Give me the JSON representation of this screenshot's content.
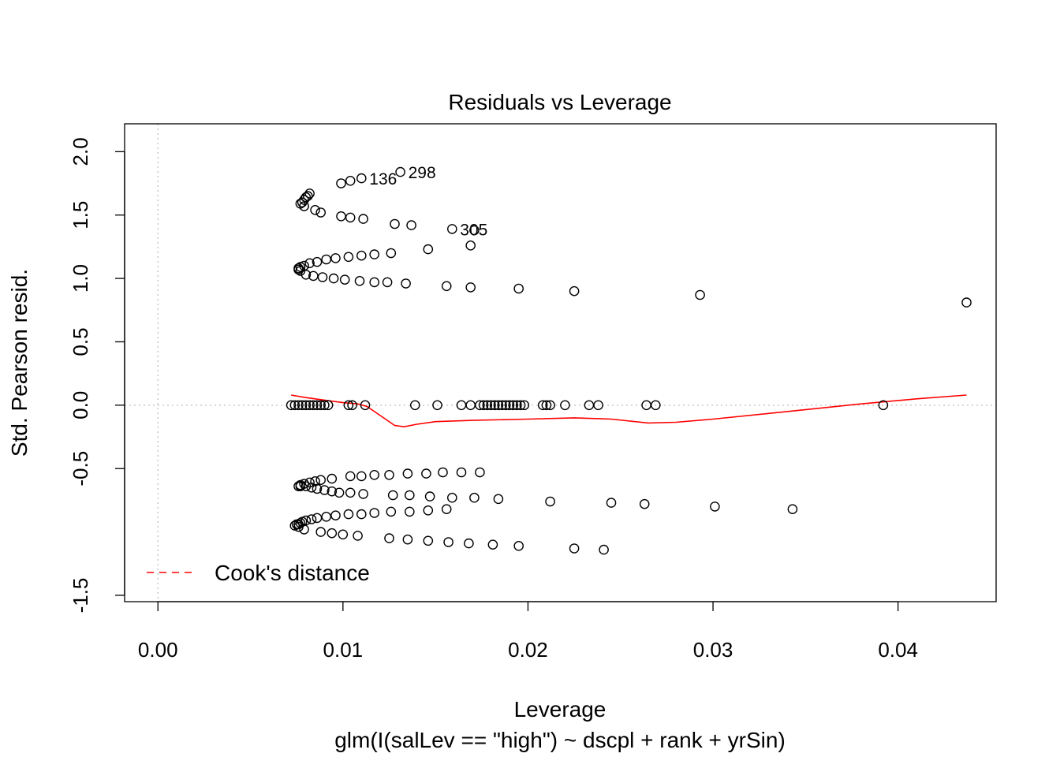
{
  "chart_data": {
    "type": "scatter",
    "title": "Residuals vs Leverage",
    "xlabel": "Leverage",
    "ylabel": "Std. Pearson resid.",
    "subtitle": "glm(I(salLev == \"high\") ~ dscpl + rank + yrSin)",
    "xlim": [
      -0.0018,
      0.0453
    ],
    "ylim": [
      -1.55,
      2.22
    ],
    "x_ticks": [
      {
        "value": 0.0,
        "label": "0.00"
      },
      {
        "value": 0.01,
        "label": "0.01"
      },
      {
        "value": 0.02,
        "label": "0.02"
      },
      {
        "value": 0.03,
        "label": "0.03"
      },
      {
        "value": 0.04,
        "label": "0.04"
      }
    ],
    "y_ticks": [
      {
        "value": 2.0,
        "label": "2.0"
      },
      {
        "value": 1.5,
        "label": "1.5"
      },
      {
        "value": 1.0,
        "label": "1.0"
      },
      {
        "value": 0.5,
        "label": "0.5"
      },
      {
        "value": 0.0,
        "label": "0.0"
      },
      {
        "value": -0.5,
        "label": "-0.5"
      },
      {
        "value": -1.5,
        "label": "-1.5"
      }
    ],
    "reference_lines": {
      "x": 0,
      "y": 0,
      "style": "dotted",
      "color": "#bebebe"
    },
    "point_color": "#000000",
    "points": [
      [
        0.0099,
        1.75
      ],
      [
        0.0104,
        1.77
      ],
      [
        0.011,
        1.79
      ],
      [
        0.0131,
        1.84
      ],
      [
        0.0078,
        1.6
      ],
      [
        0.0079,
        1.62
      ],
      [
        0.008,
        1.64
      ],
      [
        0.0081,
        1.65
      ],
      [
        0.0082,
        1.67
      ],
      [
        0.0077,
        1.59
      ],
      [
        0.0079,
        1.57
      ],
      [
        0.0085,
        1.54
      ],
      [
        0.0088,
        1.52
      ],
      [
        0.0099,
        1.49
      ],
      [
        0.0104,
        1.48
      ],
      [
        0.0111,
        1.47
      ],
      [
        0.0128,
        1.43
      ],
      [
        0.0137,
        1.42
      ],
      [
        0.0159,
        1.39
      ],
      [
        0.0171,
        1.38
      ],
      [
        0.0146,
        1.23
      ],
      [
        0.0169,
        1.26
      ],
      [
        0.0126,
        1.2
      ],
      [
        0.0117,
        1.19
      ],
      [
        0.011,
        1.18
      ],
      [
        0.0103,
        1.17
      ],
      [
        0.0096,
        1.16
      ],
      [
        0.0091,
        1.15
      ],
      [
        0.0086,
        1.13
      ],
      [
        0.0082,
        1.12
      ],
      [
        0.0079,
        1.1
      ],
      [
        0.0077,
        1.09
      ],
      [
        0.0076,
        1.08
      ],
      [
        0.0076,
        1.07
      ],
      [
        0.0077,
        1.06
      ],
      [
        0.008,
        1.03
      ],
      [
        0.0084,
        1.02
      ],
      [
        0.0089,
        1.01
      ],
      [
        0.0095,
        1.0
      ],
      [
        0.0101,
        0.99
      ],
      [
        0.0109,
        0.98
      ],
      [
        0.0117,
        0.97
      ],
      [
        0.0124,
        0.97
      ],
      [
        0.0134,
        0.96
      ],
      [
        0.0156,
        0.94
      ],
      [
        0.0169,
        0.93
      ],
      [
        0.0195,
        0.92
      ],
      [
        0.0225,
        0.9
      ],
      [
        0.0293,
        0.87
      ],
      [
        0.0437,
        0.81
      ],
      [
        0.0072,
        0.0
      ],
      [
        0.0074,
        0.0
      ],
      [
        0.0076,
        0.0
      ],
      [
        0.0078,
        0.0
      ],
      [
        0.008,
        0.0
      ],
      [
        0.0082,
        0.0
      ],
      [
        0.0084,
        0.0
      ],
      [
        0.0086,
        0.0
      ],
      [
        0.0088,
        0.0
      ],
      [
        0.009,
        0.0
      ],
      [
        0.0092,
        0.0
      ],
      [
        0.0103,
        0.0
      ],
      [
        0.0105,
        0.0
      ],
      [
        0.0112,
        0.0
      ],
      [
        0.0139,
        0.0
      ],
      [
        0.0151,
        0.0
      ],
      [
        0.0164,
        0.0
      ],
      [
        0.0169,
        0.0
      ],
      [
        0.0174,
        0.0
      ],
      [
        0.0176,
        0.0
      ],
      [
        0.0178,
        0.0
      ],
      [
        0.018,
        0.0
      ],
      [
        0.0182,
        0.0
      ],
      [
        0.0184,
        0.0
      ],
      [
        0.0186,
        0.0
      ],
      [
        0.0188,
        0.0
      ],
      [
        0.019,
        0.0
      ],
      [
        0.0192,
        0.0
      ],
      [
        0.0194,
        0.0
      ],
      [
        0.0196,
        0.0
      ],
      [
        0.0198,
        0.0
      ],
      [
        0.0208,
        0.0
      ],
      [
        0.021,
        0.0
      ],
      [
        0.0212,
        0.0
      ],
      [
        0.022,
        0.0
      ],
      [
        0.0233,
        0.0
      ],
      [
        0.0238,
        0.0
      ],
      [
        0.0264,
        0.0
      ],
      [
        0.0269,
        0.0
      ],
      [
        0.0392,
        0.0
      ],
      [
        0.0174,
        -0.53
      ],
      [
        0.0164,
        -0.53
      ],
      [
        0.0154,
        -0.53
      ],
      [
        0.0145,
        -0.54
      ],
      [
        0.0135,
        -0.54
      ],
      [
        0.0125,
        -0.55
      ],
      [
        0.0117,
        -0.55
      ],
      [
        0.011,
        -0.56
      ],
      [
        0.0104,
        -0.56
      ],
      [
        0.0094,
        -0.58
      ],
      [
        0.0088,
        -0.59
      ],
      [
        0.0085,
        -0.6
      ],
      [
        0.0082,
        -0.61
      ],
      [
        0.0079,
        -0.62
      ],
      [
        0.0077,
        -0.63
      ],
      [
        0.0076,
        -0.64
      ],
      [
        0.0077,
        -0.64
      ],
      [
        0.008,
        -0.64
      ],
      [
        0.0083,
        -0.65
      ],
      [
        0.0086,
        -0.66
      ],
      [
        0.009,
        -0.67
      ],
      [
        0.0094,
        -0.68
      ],
      [
        0.0098,
        -0.69
      ],
      [
        0.0104,
        -0.69
      ],
      [
        0.0111,
        -0.7
      ],
      [
        0.0127,
        -0.71
      ],
      [
        0.0136,
        -0.71
      ],
      [
        0.0147,
        -0.72
      ],
      [
        0.0159,
        -0.73
      ],
      [
        0.0171,
        -0.73
      ],
      [
        0.0184,
        -0.74
      ],
      [
        0.0212,
        -0.76
      ],
      [
        0.0245,
        -0.77
      ],
      [
        0.0263,
        -0.78
      ],
      [
        0.0301,
        -0.8
      ],
      [
        0.0343,
        -0.82
      ],
      [
        0.0156,
        -0.82
      ],
      [
        0.0146,
        -0.83
      ],
      [
        0.0136,
        -0.84
      ],
      [
        0.0126,
        -0.84
      ],
      [
        0.0117,
        -0.85
      ],
      [
        0.011,
        -0.86
      ],
      [
        0.0103,
        -0.86
      ],
      [
        0.0096,
        -0.87
      ],
      [
        0.0091,
        -0.88
      ],
      [
        0.0086,
        -0.89
      ],
      [
        0.0083,
        -0.9
      ],
      [
        0.008,
        -0.91
      ],
      [
        0.0078,
        -0.92
      ],
      [
        0.0077,
        -0.93
      ],
      [
        0.0076,
        -0.94
      ],
      [
        0.0075,
        -0.94
      ],
      [
        0.0074,
        -0.95
      ],
      [
        0.0076,
        -0.96
      ],
      [
        0.0079,
        -0.98
      ],
      [
        0.0088,
        -1.0
      ],
      [
        0.0094,
        -1.01
      ],
      [
        0.01,
        -1.02
      ],
      [
        0.0108,
        -1.03
      ],
      [
        0.0125,
        -1.05
      ],
      [
        0.0135,
        -1.06
      ],
      [
        0.0146,
        -1.07
      ],
      [
        0.0157,
        -1.08
      ],
      [
        0.0168,
        -1.09
      ],
      [
        0.0181,
        -1.1
      ],
      [
        0.0195,
        -1.11
      ],
      [
        0.0225,
        -1.13
      ],
      [
        0.0241,
        -1.14
      ]
    ],
    "point_labels": [
      {
        "text": "136",
        "x": 0.011,
        "y": 1.79
      },
      {
        "text": "298",
        "x": 0.0131,
        "y": 1.84
      },
      {
        "text": "305",
        "x": 0.0159,
        "y": 1.39
      }
    ],
    "smoother": {
      "name": "",
      "color": "#ff0000",
      "points": [
        [
          0.0072,
          0.08
        ],
        [
          0.008,
          0.06
        ],
        [
          0.009,
          0.04
        ],
        [
          0.01,
          0.02
        ],
        [
          0.0108,
          0.01
        ],
        [
          0.0113,
          -0.01
        ],
        [
          0.0118,
          -0.06
        ],
        [
          0.0123,
          -0.11
        ],
        [
          0.0128,
          -0.16
        ],
        [
          0.0133,
          -0.17
        ],
        [
          0.014,
          -0.15
        ],
        [
          0.015,
          -0.13
        ],
        [
          0.017,
          -0.12
        ],
        [
          0.02,
          -0.11
        ],
        [
          0.0225,
          -0.1
        ],
        [
          0.0245,
          -0.11
        ],
        [
          0.0265,
          -0.14
        ],
        [
          0.028,
          -0.135
        ],
        [
          0.03,
          -0.11
        ],
        [
          0.034,
          -0.05
        ],
        [
          0.038,
          0.01
        ],
        [
          0.041,
          0.05
        ],
        [
          0.0437,
          0.08
        ]
      ]
    },
    "legend": {
      "placement": "bottom-left",
      "entries": [
        {
          "label": "Cook's distance",
          "color": "#ff0000",
          "style": "dashed"
        }
      ]
    }
  }
}
